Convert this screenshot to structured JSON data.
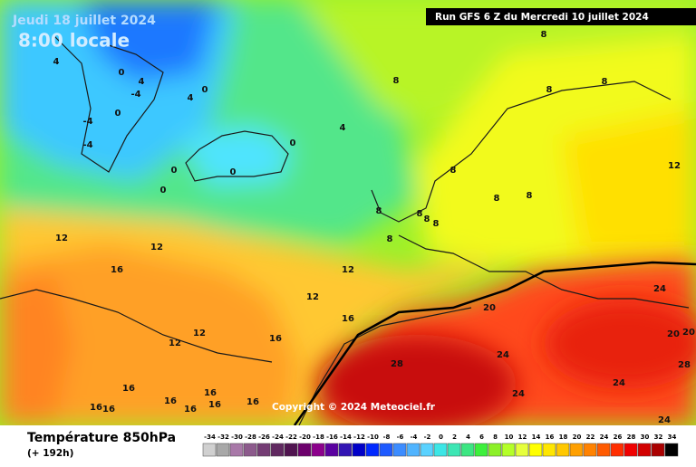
{
  "header": {
    "date": "Jeudi 18 juillet 2024",
    "time": "8:00 locale",
    "run": "Run GFS 6 Z du Mercredi 10 juillet 2024"
  },
  "copyright": "Copyright © 2024 Meteociel.fr",
  "map": {
    "labels": [
      4,
      0,
      4,
      -4,
      4,
      0,
      0,
      -4,
      -4,
      0,
      0,
      0,
      0,
      4,
      8,
      8,
      8,
      8,
      8,
      8,
      8,
      8,
      8,
      8,
      8,
      8,
      12,
      12,
      12,
      16,
      12,
      12,
      16,
      12,
      12,
      16,
      20,
      24,
      20,
      20,
      24,
      28,
      28,
      24,
      24,
      24,
      16,
      16,
      16,
      16,
      16,
      16,
      16,
      16
    ]
  },
  "legend": {
    "title": "Température 850hPa",
    "subtitle": "(+ 192h)",
    "values": [
      -34,
      -32,
      -30,
      -28,
      -26,
      -24,
      -22,
      -20,
      -18,
      -16,
      -14,
      -12,
      -10,
      -8,
      -6,
      -4,
      -2,
      0,
      2,
      4,
      6,
      8,
      10,
      12,
      14,
      16,
      18,
      20,
      22,
      24,
      26,
      28,
      30,
      32,
      34
    ],
    "colors": [
      "#d0d0d0",
      "#a8a8a8",
      "#a878a8",
      "#8c5a8c",
      "#743c74",
      "#602860",
      "#501450",
      "#6c006c",
      "#8c008c",
      "#5a00a0",
      "#3214b4",
      "#0000c8",
      "#0028ff",
      "#1e5aff",
      "#3c8cff",
      "#50b4ff",
      "#5ad2ff",
      "#3ce6e6",
      "#3ce6b4",
      "#3ce682",
      "#3cf03c",
      "#8cf028",
      "#b4ff28",
      "#e6ff3c",
      "#ffff00",
      "#ffe600",
      "#ffc800",
      "#ffa000",
      "#ff8200",
      "#ff5a00",
      "#ff2d00",
      "#f00000",
      "#d20000",
      "#aa0000",
      "#000000"
    ]
  }
}
